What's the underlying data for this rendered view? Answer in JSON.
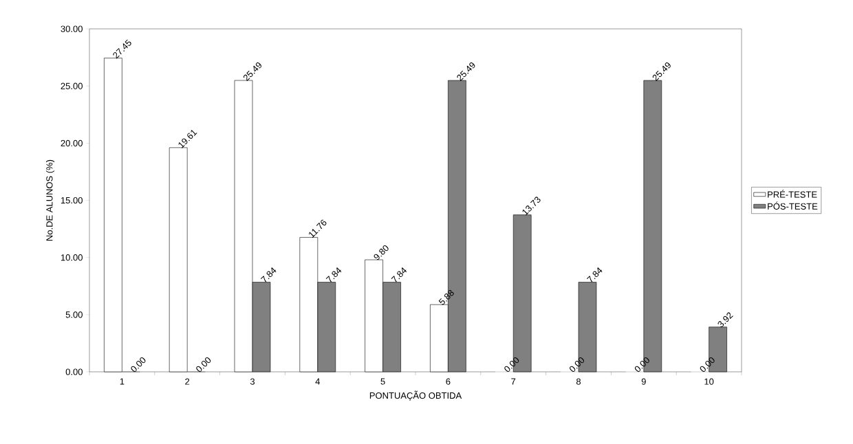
{
  "chart_data": {
    "type": "bar",
    "xlabel": "PONTUAÇÃO OBTIDA",
    "ylabel": "No.DE ALUNOS (%)",
    "categories": [
      "1",
      "2",
      "3",
      "4",
      "5",
      "6",
      "7",
      "8",
      "9",
      "10"
    ],
    "series": [
      {
        "name": "PRÉ-TESTE",
        "color": "#ffffff",
        "values": [
          27.45,
          19.61,
          25.49,
          11.76,
          9.8,
          5.88,
          0,
          0,
          0,
          0
        ],
        "value_labels": [
          "27.45",
          "19.61",
          "25.49",
          "11.76",
          "9.80",
          "5.88",
          "0.00",
          "0.00",
          "0.00",
          "0.00"
        ]
      },
      {
        "name": "PÓS-TESTE",
        "color": "#808080",
        "values": [
          0,
          0,
          7.84,
          7.84,
          7.84,
          25.49,
          13.73,
          7.84,
          25.49,
          3.92
        ],
        "value_labels": [
          "0.00",
          "0.00",
          "7.84",
          "7.84",
          "7.84",
          "25.49",
          "13.73",
          "7.84",
          "25.49",
          "3.92"
        ]
      }
    ],
    "ylim": [
      0,
      30
    ],
    "yticks": [
      {
        "value": 0,
        "label": "0.00"
      },
      {
        "value": 5,
        "label": "5.00"
      },
      {
        "value": 10,
        "label": "10.00"
      },
      {
        "value": 15,
        "label": "15.00"
      },
      {
        "value": 20,
        "label": "20.00"
      },
      {
        "value": 25,
        "label": "25.00"
      },
      {
        "value": 30,
        "label": "30.00"
      }
    ],
    "grid": false,
    "legend": "right"
  }
}
